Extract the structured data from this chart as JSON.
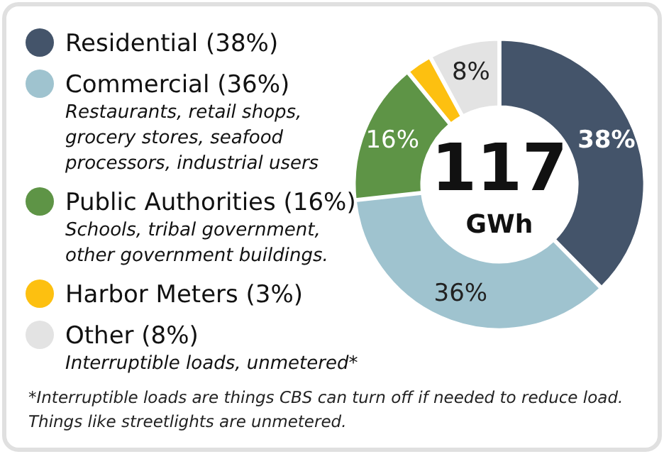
{
  "chart_data": {
    "type": "donut",
    "title": "117",
    "subtitle": "GWh",
    "categories": [
      "Residential (38%)",
      "Commercial (36%)",
      "Public Authorities (16%)",
      "Harbor Meters (3%)",
      "Other (8%)"
    ],
    "values": [
      38,
      36,
      16,
      3,
      8
    ],
    "colors": [
      "#44546a",
      "#9fc3cf",
      "#5e9446",
      "#fdc010",
      "#e3e3e3"
    ],
    "value_labels": [
      "38%",
      "36%",
      "16%",
      null,
      "8%"
    ],
    "legend": "left",
    "annotations": [
      "Restaurants, retail shops, grocery stores, seafood processors, industrial users",
      "Schools, tribal government, other government buildings.",
      "Interruptible loads, unmetered*",
      "*Interruptible loads are things CBS can turn off if needed to reduce load. Things like streetlights are unmetered."
    ]
  }
}
